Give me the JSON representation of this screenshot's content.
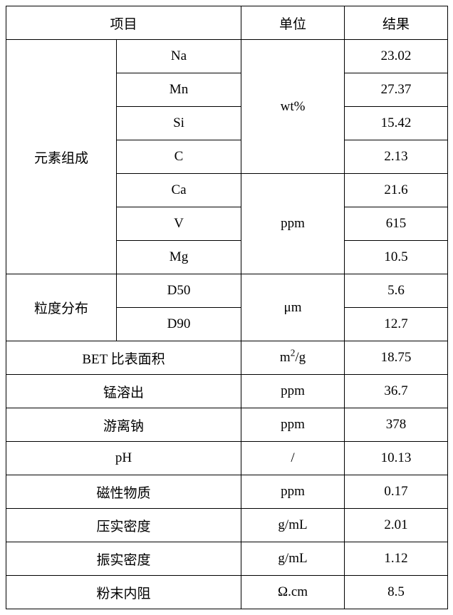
{
  "headers": {
    "item": "项目",
    "unit": "单位",
    "result": "结果"
  },
  "groupA": {
    "label": "元素组成",
    "unit_wt": "wt%",
    "unit_ppm": "ppm",
    "rows_wt": [
      {
        "name": "Na",
        "result": "23.02"
      },
      {
        "name": "Mn",
        "result": "27.37"
      },
      {
        "name": "Si",
        "result": "15.42"
      },
      {
        "name": "C",
        "result": "2.13"
      }
    ],
    "rows_ppm": [
      {
        "name": "Ca",
        "result": "21.6"
      },
      {
        "name": "V",
        "result": "615"
      },
      {
        "name": "Mg",
        "result": "10.5"
      }
    ]
  },
  "groupB": {
    "label": "粒度分布",
    "unit": "μm",
    "rows": [
      {
        "name": "D50",
        "result": "5.6"
      },
      {
        "name": "D90",
        "result": "12.7"
      }
    ]
  },
  "singles": [
    {
      "name": "BET 比表面积",
      "unit_html": "m<sup>2</sup>/g",
      "result": "18.75"
    },
    {
      "name": "锰溶出",
      "unit_html": "ppm",
      "result": "36.7"
    },
    {
      "name": "游离钠",
      "unit_html": "ppm",
      "result": "378"
    },
    {
      "name": "pH",
      "unit_html": "/",
      "result": "10.13"
    },
    {
      "name": "磁性物质",
      "unit_html": "ppm",
      "result": "0.17"
    },
    {
      "name": "压实密度",
      "unit_html": "g/mL",
      "result": "2.01"
    },
    {
      "name": "振实密度",
      "unit_html": "g/mL",
      "result": "1.12"
    },
    {
      "name": "粉末内阻",
      "unit_html": "Ω.cm",
      "result": "8.5"
    }
  ]
}
